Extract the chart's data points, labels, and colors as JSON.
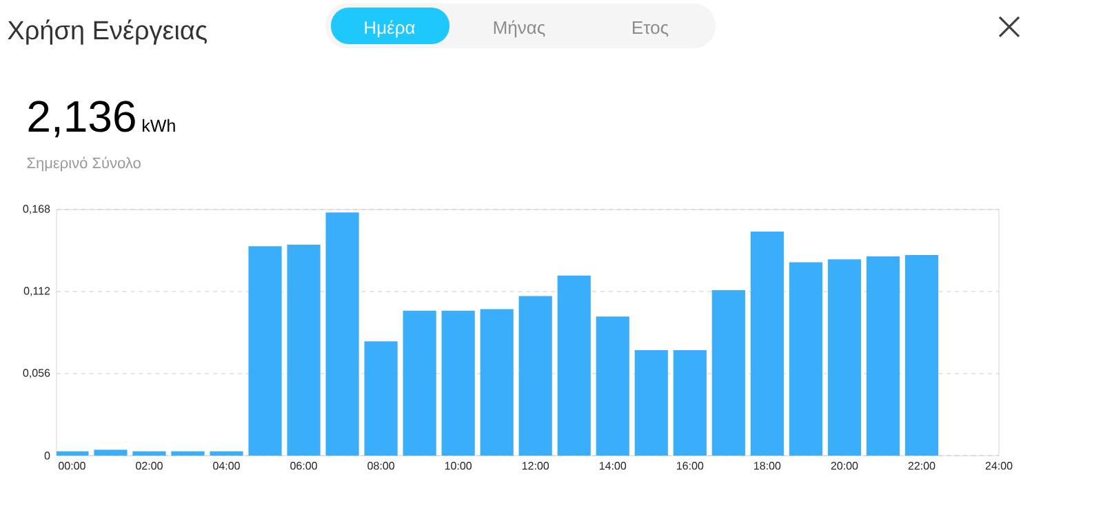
{
  "chart_data": {
    "type": "bar",
    "title": "Χρήση Ενέργειας",
    "annotations": [
      "Ημέρα",
      "Μήνας",
      "Ετος",
      "2,136",
      "kWh",
      "Σημερινό Σύνολο"
    ],
    "x": [
      0,
      1,
      2,
      3,
      4,
      5,
      6,
      7,
      8,
      9,
      10,
      11,
      12,
      13,
      14,
      15,
      16,
      17,
      18,
      19,
      20,
      21,
      22
    ],
    "values": [
      0.003,
      0.004,
      0.003,
      0.003,
      0.003,
      0.143,
      0.144,
      0.166,
      0.078,
      0.099,
      0.099,
      0.1,
      0.109,
      0.123,
      0.095,
      0.072,
      0.072,
      0.113,
      0.153,
      0.132,
      0.134,
      0.136,
      0.137
    ],
    "color": "#3aaefa",
    "xlim": [
      -0.4,
      24
    ],
    "xticks": [
      {
        "value": 0,
        "label": "00:00"
      },
      {
        "value": 2,
        "label": "02:00"
      },
      {
        "value": 4,
        "label": "04:00"
      },
      {
        "value": 6,
        "label": "06:00"
      },
      {
        "value": 8,
        "label": "08:00"
      },
      {
        "value": 10,
        "label": "10:00"
      },
      {
        "value": 12,
        "label": "12:00"
      },
      {
        "value": 14,
        "label": "14:00"
      },
      {
        "value": 16,
        "label": "16:00"
      },
      {
        "value": 18,
        "label": "18:00"
      },
      {
        "value": 20,
        "label": "20:00"
      },
      {
        "value": 22,
        "label": "22:00"
      },
      {
        "value": 24,
        "label": "24:00"
      }
    ],
    "ylim": [
      0,
      0.168
    ],
    "yticks": [
      0,
      {
        "value": 0.056,
        "label": "0,056"
      },
      {
        "value": 0.112,
        "label": "0,112"
      },
      {
        "value": 0.168,
        "label": "0,168"
      }
    ],
    "grid": "y"
  }
}
